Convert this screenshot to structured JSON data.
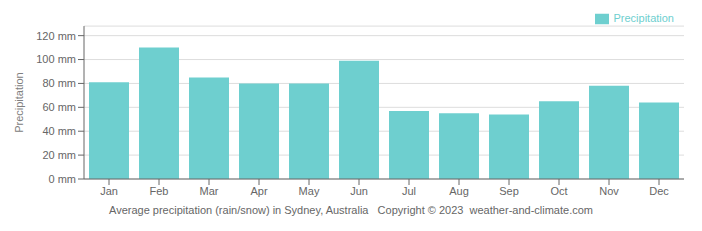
{
  "chart_data": {
    "type": "bar",
    "title": "Average precipitation (rain/snow) in Sydney, Australia   Copyright © 2023  weather-and-climate.com",
    "ylabel": "Precipitation",
    "categories": [
      "Jan",
      "Feb",
      "Mar",
      "Apr",
      "May",
      "Jun",
      "Jul",
      "Aug",
      "Sep",
      "Oct",
      "Nov",
      "Dec"
    ],
    "series": [
      {
        "name": "Precipitation",
        "color": "#6ECFCF",
        "values": [
          81,
          110,
          85,
          80,
          80,
          99,
          57,
          55,
          54,
          65,
          78,
          64
        ]
      }
    ],
    "ylim": [
      0,
      128
    ],
    "yticks": [
      {
        "value": 0,
        "label": "0 mm"
      },
      {
        "value": 20,
        "label": "20 mm"
      },
      {
        "value": 40,
        "label": "40 mm"
      },
      {
        "value": 60,
        "label": "60 mm"
      },
      {
        "value": 80,
        "label": "80 mm"
      },
      {
        "value": 100,
        "label": "100 mm"
      },
      {
        "value": 120,
        "label": "120 mm"
      }
    ],
    "grid": true,
    "legend": "upper right"
  }
}
